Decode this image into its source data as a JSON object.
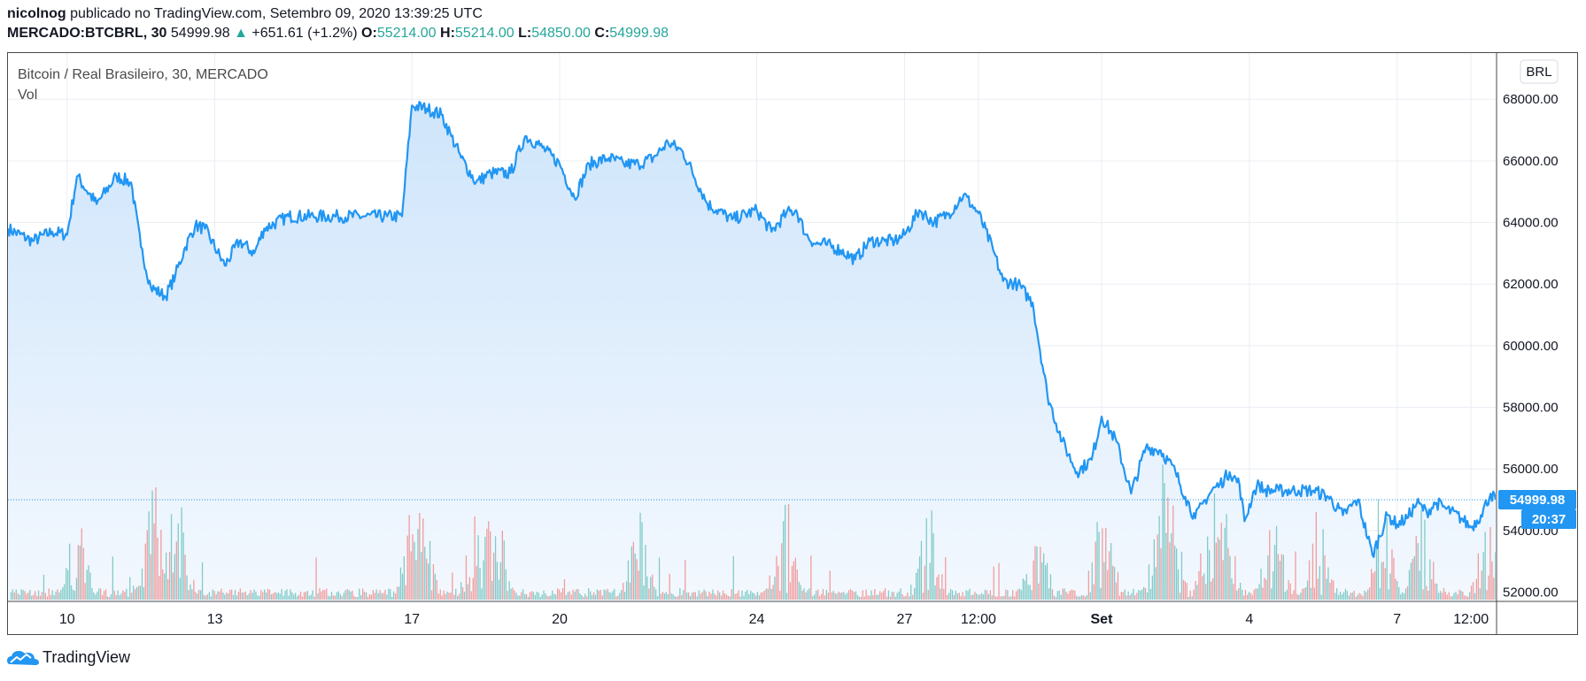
{
  "header": {
    "user": "nicolnog",
    "published_text": "publicado no TradingView.com, Setembro 09, 2020 13:39:25 UTC",
    "symbol": "MERCADO:BTCBRL, 30",
    "last_price": "54999.98",
    "change_arrow": "▲",
    "change": "+651.61 (+1.2%)",
    "open_label": "O:",
    "open": "55214.00",
    "high_label": "H:",
    "high": "55214.00",
    "low_label": "L:",
    "low": "54850.00",
    "close_label": "C:",
    "close": "54999.98"
  },
  "chart_title": "Bitcoin / Real Brasileiro, 30, MERCADO",
  "volume_label": "Vol",
  "currency_button": "BRL",
  "price_badge": "54999.98",
  "countdown_badge": "20:37",
  "footer_brand": "TradingView",
  "colors": {
    "line": "#2196f3",
    "area_top": "#cfe5fb",
    "area_bottom": "#f3f8fe",
    "vol_up": "#26a69a",
    "vol_down": "#ef5350",
    "badge": "#2196f3",
    "grid": "#e9eef3"
  },
  "chart_data": {
    "type": "area",
    "title": "Bitcoin / Real Brasileiro, 30, MERCADO",
    "ylim": [
      51700,
      69500
    ],
    "y_ticks": [
      "68000.00",
      "66000.00",
      "64000.00",
      "62000.00",
      "60000.00",
      "58000.00",
      "56000.00",
      "54000.00",
      "52000.00"
    ],
    "y_tick_values": [
      68000,
      66000,
      64000,
      62000,
      60000,
      58000,
      56000,
      54000,
      52000
    ],
    "x_ticks": [
      "10",
      "13",
      "17",
      "20",
      "24",
      "27",
      "12:00",
      "Set",
      "4",
      "7",
      "12:00"
    ],
    "x_tick_dayoffsets": [
      1.0,
      4.0,
      8.0,
      11.0,
      15.0,
      18.0,
      19.5,
      22.0,
      25.0,
      28.0,
      29.5
    ],
    "x_range_days": [
      -0.2,
      30.0
    ],
    "last_value": 54999.98,
    "series": [
      {
        "x": [
          -0.2,
          0.3,
          0.7,
          1.0,
          1.2,
          1.6,
          2.0,
          2.3,
          2.5,
          2.7,
          3.0,
          3.2,
          3.4,
          3.6,
          3.8,
          4.2,
          4.5,
          4.8,
          5.0,
          5.5,
          6.0,
          6.5,
          7.0,
          7.5,
          7.8,
          8.0,
          8.3,
          8.6,
          8.8,
          9.0,
          9.3,
          9.6,
          10.0,
          10.3,
          10.6,
          11.0,
          11.3,
          11.6,
          12.0,
          12.3,
          12.6,
          12.9,
          13.2,
          13.5,
          14.0,
          14.5,
          15.0,
          15.3,
          15.6,
          15.8,
          16.0,
          16.2,
          16.4,
          16.7,
          17.0,
          17.3,
          17.6,
          17.8,
          18.0,
          18.3,
          18.6,
          18.9,
          19.2,
          19.5,
          19.8,
          20.0,
          20.3,
          20.6,
          20.9,
          21.2,
          21.5,
          21.8,
          22.0,
          22.3,
          22.6,
          22.9,
          23.2,
          23.5,
          23.7,
          23.9,
          24.1,
          24.3,
          24.4,
          24.6,
          24.8,
          24.9,
          25.1,
          25.2,
          25.3,
          25.6,
          26.0,
          26.3,
          26.6,
          26.9,
          27.2,
          27.5,
          27.8,
          28.0,
          28.2,
          28.4,
          28.6,
          28.8,
          29.0,
          29.3,
          29.5,
          29.7,
          29.9,
          30.0
        ],
        "y": [
          63800,
          63400,
          63700,
          63600,
          65500,
          64600,
          65500,
          65300,
          63200,
          61900,
          61600,
          62300,
          63200,
          63900,
          63800,
          62600,
          63400,
          63000,
          63800,
          64200,
          64200,
          64200,
          64200,
          64200,
          64200,
          67800,
          67700,
          67500,
          66800,
          66100,
          65300,
          65600,
          65600,
          66800,
          66500,
          65900,
          64800,
          65900,
          66100,
          65900,
          65900,
          66100,
          66600,
          66300,
          64600,
          64100,
          64400,
          63700,
          64300,
          64400,
          63600,
          63300,
          63300,
          63100,
          62800,
          63400,
          63400,
          63400,
          63600,
          64400,
          64000,
          64300,
          64900,
          64300,
          63100,
          62100,
          62000,
          61400,
          58400,
          56900,
          55900,
          56300,
          57700,
          56900,
          55200,
          56700,
          56600,
          55900,
          55100,
          54400,
          55000,
          55400,
          55500,
          55900,
          55500,
          54300,
          55300,
          55500,
          55300,
          55300,
          55300,
          55300,
          55100,
          54500,
          55000,
          53200,
          54500,
          54200,
          54400,
          54900,
          54600,
          54900,
          54700,
          54400,
          54100,
          54500,
          55200,
          54999.98
        ]
      }
    ]
  }
}
